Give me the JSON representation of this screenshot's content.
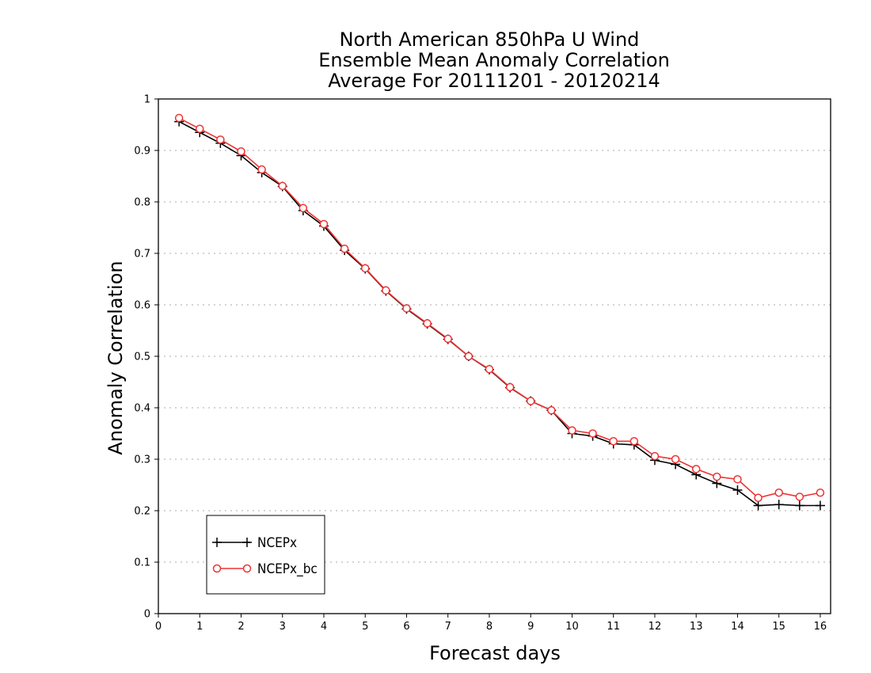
{
  "chart_data": {
    "type": "line",
    "title_lines": [
      "North American 850hPa U Wind",
      "Ensemble Mean Anomaly Correlation",
      "Average For 20111201 - 20120214"
    ],
    "xlabel": "Forecast days",
    "ylabel": "Anomaly Correlation",
    "xlim": [
      0,
      16.25
    ],
    "ylim": [
      0,
      1
    ],
    "x_ticks": [
      "0",
      "1",
      "2",
      "3",
      "4",
      "5",
      "6",
      "7",
      "8",
      "9",
      "10",
      "11",
      "12",
      "13",
      "14",
      "15",
      "16"
    ],
    "y_ticks": [
      "0",
      "0.1",
      "0.2",
      "0.3",
      "0.4",
      "0.5",
      "0.6",
      "0.7",
      "0.8",
      "0.9",
      "1"
    ],
    "grid": "horizontal dotted",
    "legend_position": "bottom-left",
    "x": [
      0.5,
      1,
      1.5,
      2,
      2.5,
      3,
      3.5,
      4,
      4.5,
      5,
      5.5,
      6,
      6.5,
      7,
      7.5,
      8,
      8.5,
      9,
      9.5,
      10,
      10.5,
      11,
      11.5,
      12,
      12.5,
      13,
      13.5,
      14,
      14.5,
      15,
      15.5,
      16
    ],
    "series": [
      {
        "name": "NCEPx",
        "color": "#000000",
        "marker": "plus",
        "values": [
          0.956,
          0.935,
          0.914,
          0.89,
          0.857,
          0.83,
          0.783,
          0.753,
          0.706,
          0.67,
          0.627,
          0.592,
          0.563,
          0.533,
          0.5,
          0.474,
          0.439,
          0.413,
          0.395,
          0.35,
          0.345,
          0.33,
          0.328,
          0.298,
          0.29,
          0.27,
          0.253,
          0.24,
          0.21,
          0.212,
          0.21,
          0.21
        ]
      },
      {
        "name": "NCEPx_bc",
        "color": "#ee3333",
        "marker": "circle",
        "values": [
          0.963,
          0.942,
          0.921,
          0.898,
          0.863,
          0.831,
          0.788,
          0.757,
          0.709,
          0.671,
          0.628,
          0.593,
          0.564,
          0.534,
          0.5,
          0.475,
          0.44,
          0.413,
          0.395,
          0.356,
          0.35,
          0.335,
          0.335,
          0.306,
          0.3,
          0.281,
          0.266,
          0.261,
          0.225,
          0.235,
          0.227,
          0.235
        ]
      }
    ]
  }
}
